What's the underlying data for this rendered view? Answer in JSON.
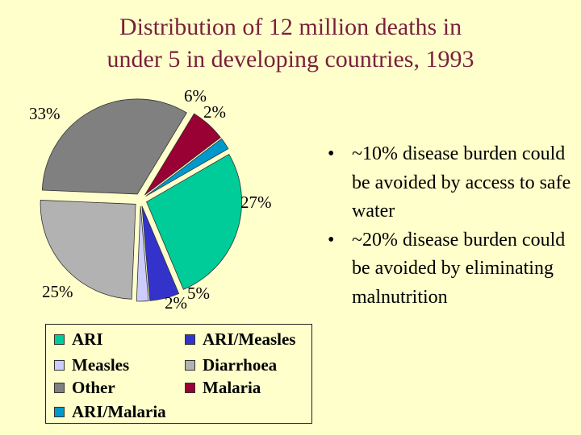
{
  "title_lines": [
    "Distribution of 12 million deaths in",
    "under 5 in developing countries, 1993"
  ],
  "chart_data": {
    "type": "pie",
    "title": "Distribution of 12 million deaths in under 5 in developing countries, 1993",
    "slices": [
      {
        "name": "ARI",
        "value": 27,
        "label": "27%",
        "color": "#00CC99"
      },
      {
        "name": "ARI/Measles",
        "value": 5,
        "label": "5%",
        "color": "#3333CC"
      },
      {
        "name": "Measles",
        "value": 2,
        "label": "2%",
        "color": "#CCCCFF"
      },
      {
        "name": "Diarrhoea",
        "value": 25,
        "label": "25%",
        "color": "#B2B2B2"
      },
      {
        "name": "Other",
        "value": 33,
        "label": "33%",
        "color": "#808080"
      },
      {
        "name": "Malaria",
        "value": 6,
        "label": "6%",
        "color": "#990033"
      },
      {
        "name": "ARI/Malaria",
        "value": 2,
        "label": "2%",
        "color": "#0099CC"
      }
    ],
    "legend": [
      {
        "label": "ARI",
        "color": "#00CC99"
      },
      {
        "label": "ARI/Measles",
        "color": "#3333CC"
      },
      {
        "label": "Measles",
        "color": "#CCCCFF"
      },
      {
        "label": "Diarrhoea",
        "color": "#B2B2B2"
      },
      {
        "label": "Other",
        "color": "#808080"
      },
      {
        "label": "Malaria",
        "color": "#990033"
      },
      {
        "label": "ARI/Malaria",
        "color": "#0099CC"
      }
    ],
    "legend_position": "bottom"
  },
  "bullets": [
    {
      "symbol": "•",
      "text": "~10% disease burden could be avoided by access to safe water"
    },
    {
      "symbol": "•",
      "text": "~20% disease burden could be avoided by eliminating malnutrition"
    }
  ]
}
